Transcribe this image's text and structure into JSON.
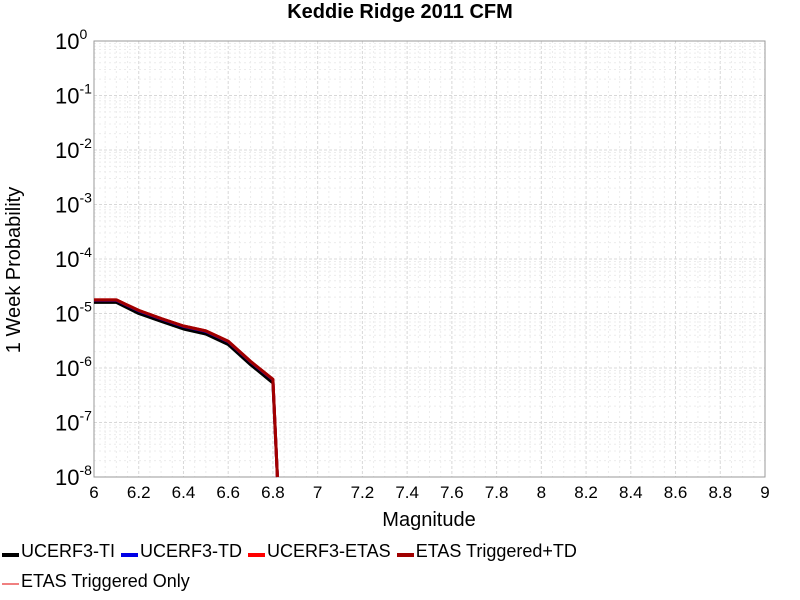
{
  "chart_data": {
    "type": "line",
    "title": "Keddie Ridge 2011 CFM",
    "xlabel": "Magnitude",
    "ylabel": "1 Week Probability",
    "xlim": [
      6,
      9
    ],
    "ylim": [
      1e-08,
      1
    ],
    "yscale": "log",
    "grid": true,
    "legend_placement": "bottom",
    "x_ticks": [
      "6",
      "6.2",
      "6.4",
      "6.6",
      "6.8",
      "7",
      "7.2",
      "7.4",
      "7.6",
      "7.8",
      "8",
      "8.2",
      "8.4",
      "8.6",
      "8.8",
      "9"
    ],
    "y_ticks": [
      {
        "base": "10",
        "exp": "0",
        "value": 1
      },
      {
        "base": "10",
        "exp": "-1",
        "value": 0.1
      },
      {
        "base": "10",
        "exp": "-2",
        "value": 0.01
      },
      {
        "base": "10",
        "exp": "-3",
        "value": 0.001
      },
      {
        "base": "10",
        "exp": "-4",
        "value": 0.0001
      },
      {
        "base": "10",
        "exp": "-5",
        "value": 1e-05
      },
      {
        "base": "10",
        "exp": "-6",
        "value": 1e-06
      },
      {
        "base": "10",
        "exp": "-7",
        "value": 1e-07
      },
      {
        "base": "10",
        "exp": "-8",
        "value": 1e-08
      }
    ],
    "series": [
      {
        "name": "UCERF3-TI",
        "color": "#000000",
        "x": [
          6.0,
          6.1,
          6.2,
          6.3,
          6.4,
          6.5,
          6.6,
          6.7,
          6.8,
          6.82
        ],
        "y": [
          1.6e-05,
          1.6e-05,
          1e-05,
          7.2e-06,
          5.2e-06,
          4.2e-06,
          2.7e-06,
          1.15e-06,
          5.3e-07,
          1e-08
        ]
      },
      {
        "name": "UCERF3-TD",
        "color": "#0000e6",
        "x": [
          6.0,
          6.1,
          6.2,
          6.3,
          6.4,
          6.5,
          6.6,
          6.7,
          6.8,
          6.82
        ],
        "y": [
          1.75e-05,
          1.75e-05,
          1.12e-05,
          8e-06,
          5.8e-06,
          4.7e-06,
          3.05e-06,
          1.3e-06,
          6.1e-07,
          1e-08
        ]
      },
      {
        "name": "UCERF3-ETAS",
        "color": "#ff0000",
        "x": [
          6.0,
          6.1,
          6.2,
          6.3,
          6.4,
          6.5,
          6.6,
          6.7,
          6.8,
          6.82
        ],
        "y": [
          1.78e-05,
          1.78e-05,
          1.14e-05,
          8.1e-06,
          5.9e-06,
          4.8e-06,
          3.1e-06,
          1.32e-06,
          6.2e-07,
          1e-08
        ]
      },
      {
        "name": "ETAS Triggered+TD",
        "color": "#a00000",
        "x": [
          6.0,
          6.1,
          6.2,
          6.3,
          6.4,
          6.5,
          6.6,
          6.7,
          6.8,
          6.82
        ],
        "y": [
          1.78e-05,
          1.78e-05,
          1.14e-05,
          8.1e-06,
          5.9e-06,
          4.8e-06,
          3.1e-06,
          1.32e-06,
          6.2e-07,
          1e-08
        ]
      },
      {
        "name": "ETAS Triggered Only",
        "color": "#f08080",
        "x": [],
        "y": []
      }
    ]
  }
}
